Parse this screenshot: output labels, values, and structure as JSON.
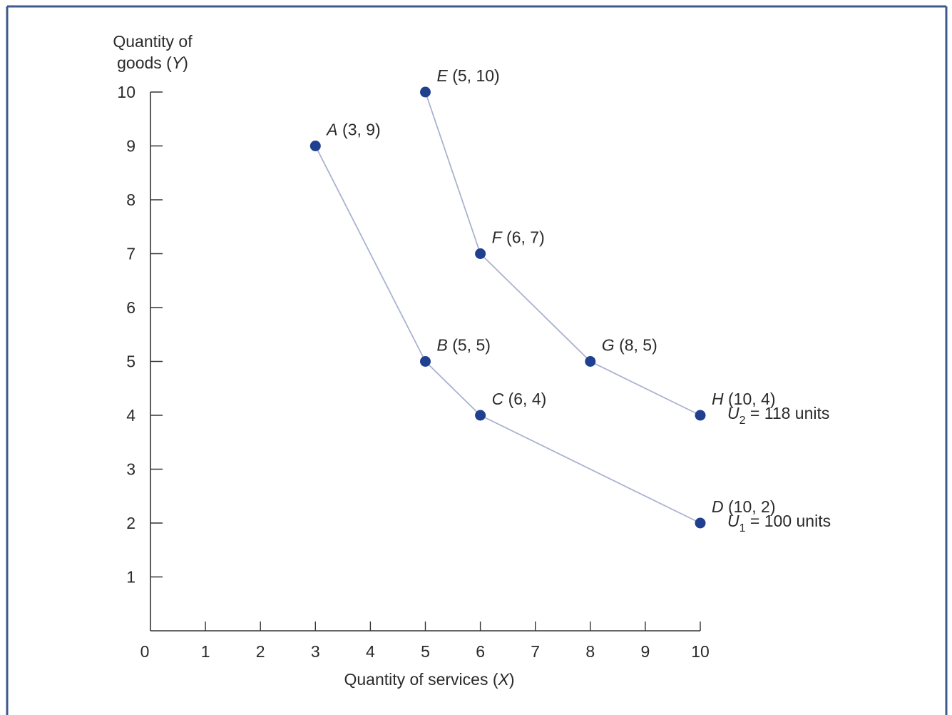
{
  "chart_data": {
    "type": "line",
    "xlabel": "Quantity of services (X)",
    "ylabel_lines": [
      "Quantity of",
      "goods (Y)"
    ],
    "xlim": [
      0,
      10
    ],
    "ylim": [
      0,
      10
    ],
    "x_ticks": [
      0,
      1,
      2,
      3,
      4,
      5,
      6,
      7,
      8,
      9,
      10
    ],
    "x_tick_labels": [
      "0",
      "1",
      "2",
      "3",
      "4",
      "5",
      "6",
      "7",
      "8",
      "9",
      "10"
    ],
    "y_ticks": [
      1,
      2,
      3,
      4,
      5,
      6,
      7,
      8,
      9,
      10
    ],
    "y_tick_labels": [
      "1",
      "2",
      "3",
      "4",
      "5",
      "6",
      "7",
      "8",
      "9",
      "10"
    ],
    "grid": false,
    "series": [
      {
        "curve_label": {
          "symbol": "U",
          "subscript": "1",
          "text": " = 100 units"
        },
        "points": [
          {
            "name": "A",
            "coords": "(3, 9)",
            "x": 3,
            "y": 9
          },
          {
            "name": "B",
            "coords": "(5, 5)",
            "x": 5,
            "y": 5
          },
          {
            "name": "C",
            "coords": "(6, 4)",
            "x": 6,
            "y": 4
          },
          {
            "name": "D",
            "coords": "(10, 2)",
            "x": 10,
            "y": 2
          }
        ]
      },
      {
        "curve_label": {
          "symbol": "U",
          "subscript": "2",
          "text": " = 118 units"
        },
        "points": [
          {
            "name": "E",
            "coords": "(5, 10)",
            "x": 5,
            "y": 10
          },
          {
            "name": "F",
            "coords": "(6, 7)",
            "x": 6,
            "y": 7
          },
          {
            "name": "G",
            "coords": "(8, 5)",
            "x": 8,
            "y": 5
          },
          {
            "name": "H",
            "coords": "(10, 4)",
            "x": 10,
            "y": 4
          }
        ]
      }
    ],
    "colors": {
      "curve": "#a9b3cf",
      "point": "#1f3f8f",
      "frame": "#3d5a8a"
    }
  }
}
